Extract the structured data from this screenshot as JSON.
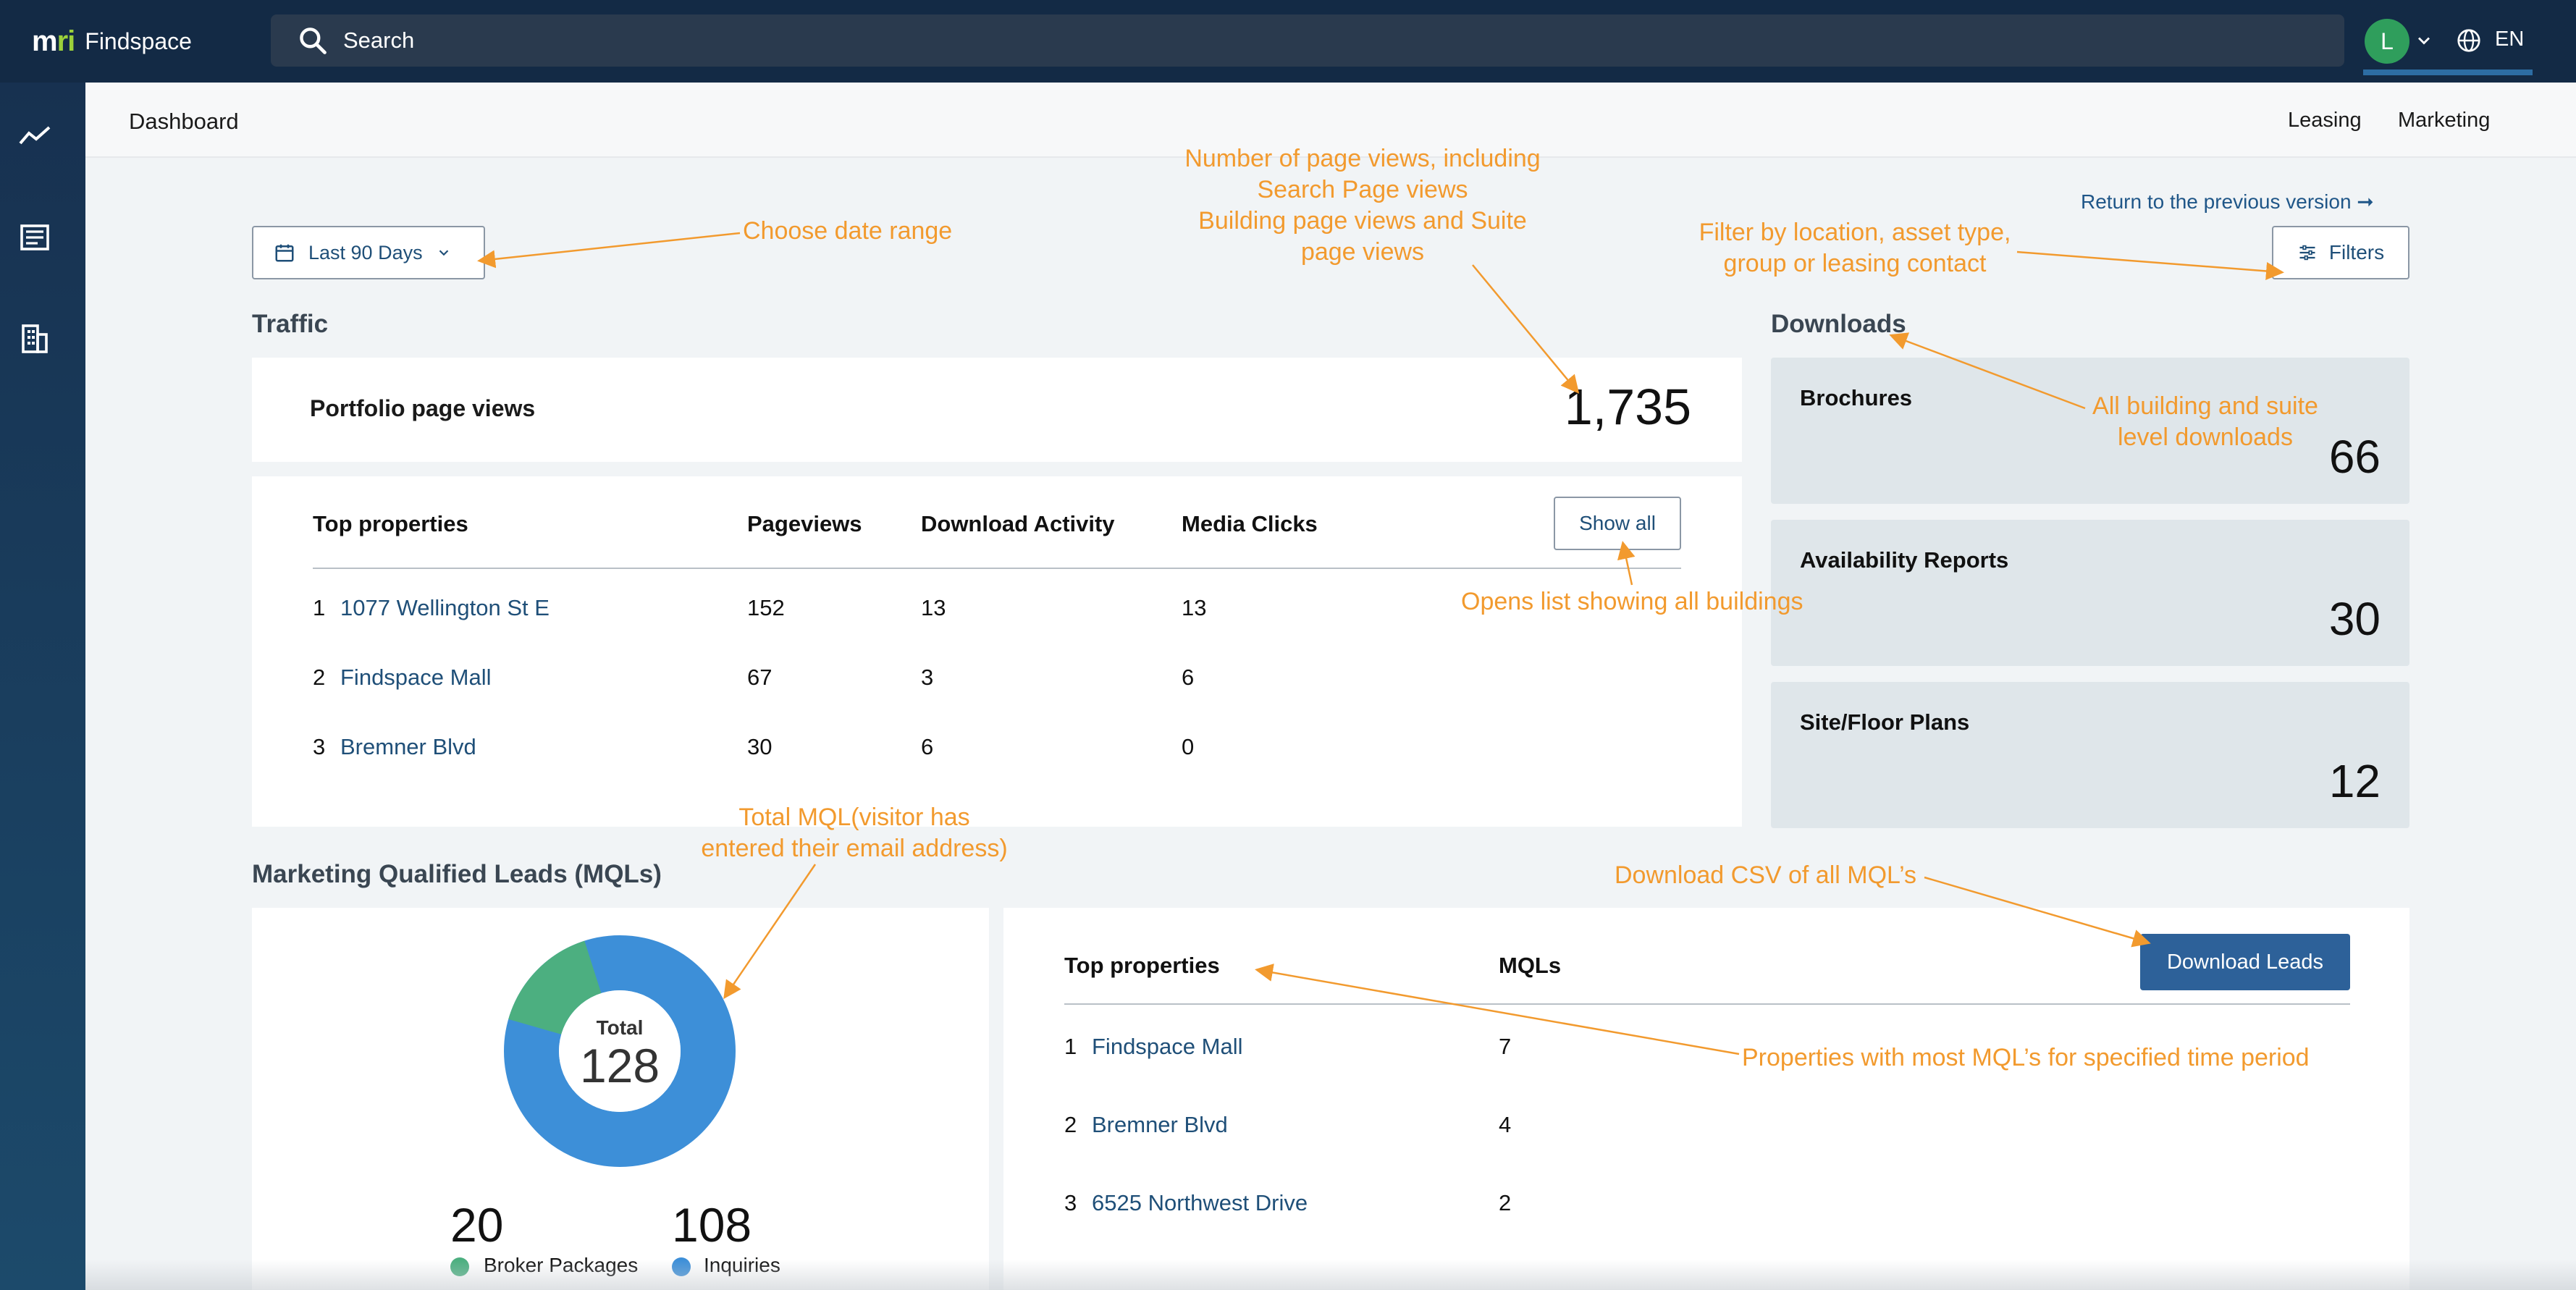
{
  "app": {
    "name": "Findspace",
    "logo": "mri",
    "search_placeholder": "Search",
    "avatar_initial": "L",
    "language": "EN"
  },
  "sidebar": {
    "items": [
      {
        "icon": "trend-line-icon"
      },
      {
        "icon": "newspaper-icon"
      },
      {
        "icon": "building-icon"
      }
    ]
  },
  "subheader": {
    "title": "Dashboard",
    "tabs": [
      {
        "label": "Leasing",
        "active": false
      },
      {
        "label": "Marketing",
        "active": true
      }
    ]
  },
  "controls": {
    "date_range": "Last 90 Days",
    "return_link": "Return to the previous version ➞",
    "filters": "Filters",
    "show_all": "Show all",
    "download_leads": "Download Leads"
  },
  "traffic": {
    "title": "Traffic",
    "portfolio_label": "Portfolio page views",
    "portfolio_value": "1,735",
    "columns": [
      "Top properties",
      "Pageviews",
      "Download Activity",
      "Media Clicks"
    ],
    "rows": [
      {
        "rank": "1",
        "name": "1077 Wellington St E",
        "pageviews": "152",
        "downloads": "13",
        "media": "13"
      },
      {
        "rank": "2",
        "name": "Findspace Mall",
        "pageviews": "67",
        "downloads": "3",
        "media": "6"
      },
      {
        "rank": "3",
        "name": "Bremner Blvd",
        "pageviews": "30",
        "downloads": "6",
        "media": "0"
      }
    ]
  },
  "downloads": {
    "title": "Downloads",
    "cards": [
      {
        "label": "Brochures",
        "value": "66"
      },
      {
        "label": "Availability Reports",
        "value": "30"
      },
      {
        "label": "Site/Floor Plans",
        "value": "12"
      }
    ]
  },
  "mqls": {
    "title": "Marketing Qualified Leads (MQLs)",
    "total_label": "Total",
    "total_value": "128",
    "legend": [
      {
        "value": "20",
        "label": "Broker Packages",
        "color": "#4caf80"
      },
      {
        "value": "108",
        "label": "Inquiries",
        "color": "#3d8fd8"
      }
    ],
    "columns": [
      "Top properties",
      "MQLs"
    ],
    "rows": [
      {
        "rank": "1",
        "name": "Findspace Mall",
        "mqls": "7"
      },
      {
        "rank": "2",
        "name": "Bremner Blvd",
        "mqls": "4"
      },
      {
        "rank": "3",
        "name": "6525 Northwest Drive",
        "mqls": "2"
      }
    ]
  },
  "annotations": {
    "date_range": "Choose date range",
    "page_views": [
      "Number of page views, including",
      "Search Page views",
      "Building page views and Suite",
      "page views"
    ],
    "filters": [
      "Filter by location, asset type,",
      "group or leasing contact"
    ],
    "downloads": [
      "All building and suite",
      "level downloads"
    ],
    "show_all": "Opens list showing all buildings",
    "total_mql": [
      "Total  MQL(visitor has",
      "entered their email address)"
    ],
    "download_csv": "Download CSV of all MQL’s",
    "top_mql": "Properties with most MQL’s for specified time  period"
  },
  "colors": {
    "topbar": "#132a45",
    "accent": "#2d6da3",
    "annotation": "#f29a2e",
    "donut_inquiries": "#3d8fd8",
    "donut_broker": "#4caf80"
  }
}
